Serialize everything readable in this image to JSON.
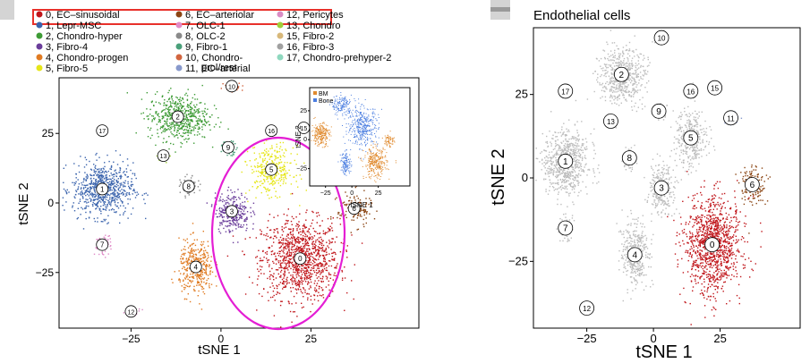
{
  "legend": {
    "items": [
      {
        "label": "0, EC–sinusoidal",
        "color": "#c0161b"
      },
      {
        "label": "1, Lepr-MSC",
        "color": "#3b64ad"
      },
      {
        "label": "2, Chondro-hyper",
        "color": "#3d9b35"
      },
      {
        "label": "3, Fibro-4",
        "color": "#6a3d9a"
      },
      {
        "label": "4, Chondro-progen",
        "color": "#e07b22"
      },
      {
        "label": "5, Fibro-5",
        "color": "#e6e619"
      },
      {
        "label": "6, EC–arteriolar",
        "color": "#8b4513"
      },
      {
        "label": "7, OLC-1",
        "color": "#e08cc8"
      },
      {
        "label": "8, OLC-2",
        "color": "#8a8a8a"
      },
      {
        "label": "9, Fibro-1",
        "color": "#4aa07a"
      },
      {
        "label": "10, Chondro-",
        "label2": "prol/rest",
        "color": "#d2653f"
      },
      {
        "label": "11, EC–arterial",
        "color": "#8899cc"
      },
      {
        "label": "12, Pericytes",
        "color": "#d98cc4"
      },
      {
        "label": "13, Chondro",
        "color": "#9fcf3a"
      },
      {
        "label": "15, Fibro-2",
        "color": "#d8b87a"
      },
      {
        "label": "16, Fibro-3",
        "color": "#a0a0a0"
      },
      {
        "label": "17, Chondro-prehyper-2",
        "color": "#8fd8bf"
      }
    ]
  },
  "inset": {
    "legend": [
      {
        "label": "BM",
        "color": "#e08a2e"
      },
      {
        "label": "Bone",
        "color": "#4a7de0"
      }
    ]
  },
  "chart_data": [
    {
      "type": "scatter",
      "title": "",
      "xlabel": "tSNE 1",
      "ylabel": "tSNE 2",
      "xticks": [
        -25,
        0,
        25
      ],
      "yticks": [
        25,
        0,
        -25
      ],
      "xlim": [
        -45,
        55
      ],
      "ylim": [
        -45,
        45
      ],
      "clusters": [
        {
          "id": "0",
          "name": "EC–sinusoidal",
          "x": 22,
          "y": -20,
          "color": "#c0161b"
        },
        {
          "id": "1",
          "name": "Lepr-MSC",
          "x": -33,
          "y": 5,
          "color": "#3b64ad"
        },
        {
          "id": "2",
          "name": "Chondro-hyper",
          "x": -12,
          "y": 31,
          "color": "#3d9b35"
        },
        {
          "id": "3",
          "name": "Fibro-4",
          "x": 3,
          "y": -3,
          "color": "#6a3d9a"
        },
        {
          "id": "4",
          "name": "Chondro-progen",
          "x": -7,
          "y": -23,
          "color": "#e07b22"
        },
        {
          "id": "5",
          "name": "Fibro-5",
          "x": 14,
          "y": 12,
          "color": "#e6e619"
        },
        {
          "id": "6",
          "name": "EC–arteriolar",
          "x": 37,
          "y": -2,
          "color": "#8b4513"
        },
        {
          "id": "7",
          "name": "OLC-1",
          "x": -33,
          "y": -15,
          "color": "#e08cc8"
        },
        {
          "id": "8",
          "name": "OLC-2",
          "x": -9,
          "y": 6,
          "color": "#8a8a8a"
        },
        {
          "id": "9",
          "name": "Fibro-1",
          "x": 2,
          "y": 20,
          "color": "#4aa07a"
        },
        {
          "id": "10",
          "name": "Chondro-prol/rest",
          "x": 3,
          "y": 42,
          "color": "#d2653f"
        },
        {
          "id": "11",
          "name": "EC–arterial",
          "x": 29,
          "y": 18,
          "color": "#8899cc"
        },
        {
          "id": "12",
          "name": "Pericytes",
          "x": -25,
          "y": -39,
          "color": "#d98cc4"
        },
        {
          "id": "13",
          "name": "Chondro",
          "x": -16,
          "y": 17,
          "color": "#9fcf3a"
        },
        {
          "id": "15",
          "name": "Fibro-2",
          "x": 23,
          "y": 27,
          "color": "#d8b87a"
        },
        {
          "id": "16",
          "name": "Fibro-3",
          "x": 14,
          "y": 26,
          "color": "#a0a0a0"
        },
        {
          "id": "17",
          "name": "Chondro-prehyper-2",
          "x": -33,
          "y": 26,
          "color": "#8fd8bf"
        }
      ]
    },
    {
      "type": "scatter",
      "title": "Endothelial cells",
      "xlabel": "tSNE 1",
      "ylabel": "tSNE 2",
      "xticks": [
        -25,
        0,
        25
      ],
      "yticks": [
        25,
        0,
        -25
      ],
      "highlighted": [
        "0",
        "6",
        "11"
      ],
      "colors": {
        "0": "#c0161b",
        "6": "#8b4513",
        "11": "#8899cc",
        "other": "#bdbdbd"
      }
    },
    {
      "type": "scatter",
      "title": "",
      "xlabel": "tSNE 1",
      "ylabel": "tSNE 2",
      "xticks": [
        -25,
        0,
        25
      ],
      "yticks": [
        25,
        0,
        -25
      ],
      "series": [
        {
          "name": "BM"
        },
        {
          "name": "Bone"
        }
      ]
    }
  ]
}
